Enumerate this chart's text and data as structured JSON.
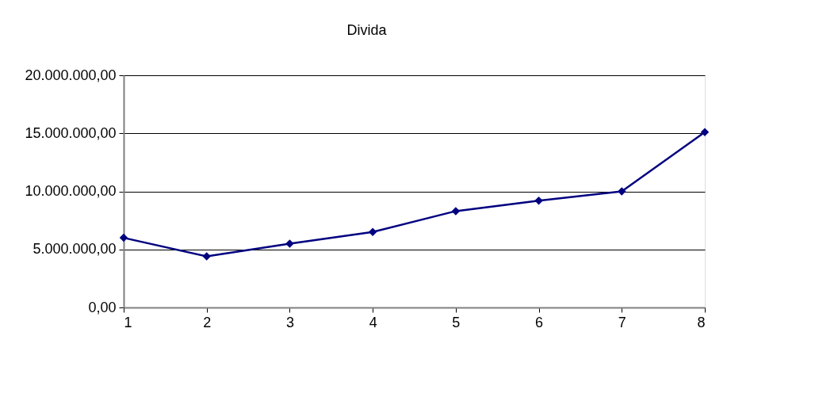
{
  "chart_data": {
    "type": "line",
    "title": "Divida",
    "x": [
      1,
      2,
      3,
      4,
      5,
      6,
      7,
      8
    ],
    "series": [
      {
        "color": "#000080",
        "values": [
          6000000,
          4400000,
          5500000,
          6500000,
          8300000,
          9200000,
          10000000,
          15100000
        ]
      }
    ],
    "xlim": [
      1,
      8
    ],
    "xticks": [
      1,
      2,
      3,
      4,
      5,
      6,
      7,
      8
    ],
    "ylim": [
      0,
      20000000
    ],
    "yticks": [
      {
        "value": 0,
        "label": "0,00"
      },
      {
        "value": 5000000,
        "label": "5.000.000,00"
      },
      {
        "value": 10000000,
        "label": "10.000.000,00"
      },
      {
        "value": 15000000,
        "label": "15.000.000,00"
      },
      {
        "value": 20000000,
        "label": "20.000.000,00"
      }
    ],
    "grid": "y",
    "marker": "diamond",
    "line_style": "solid"
  }
}
